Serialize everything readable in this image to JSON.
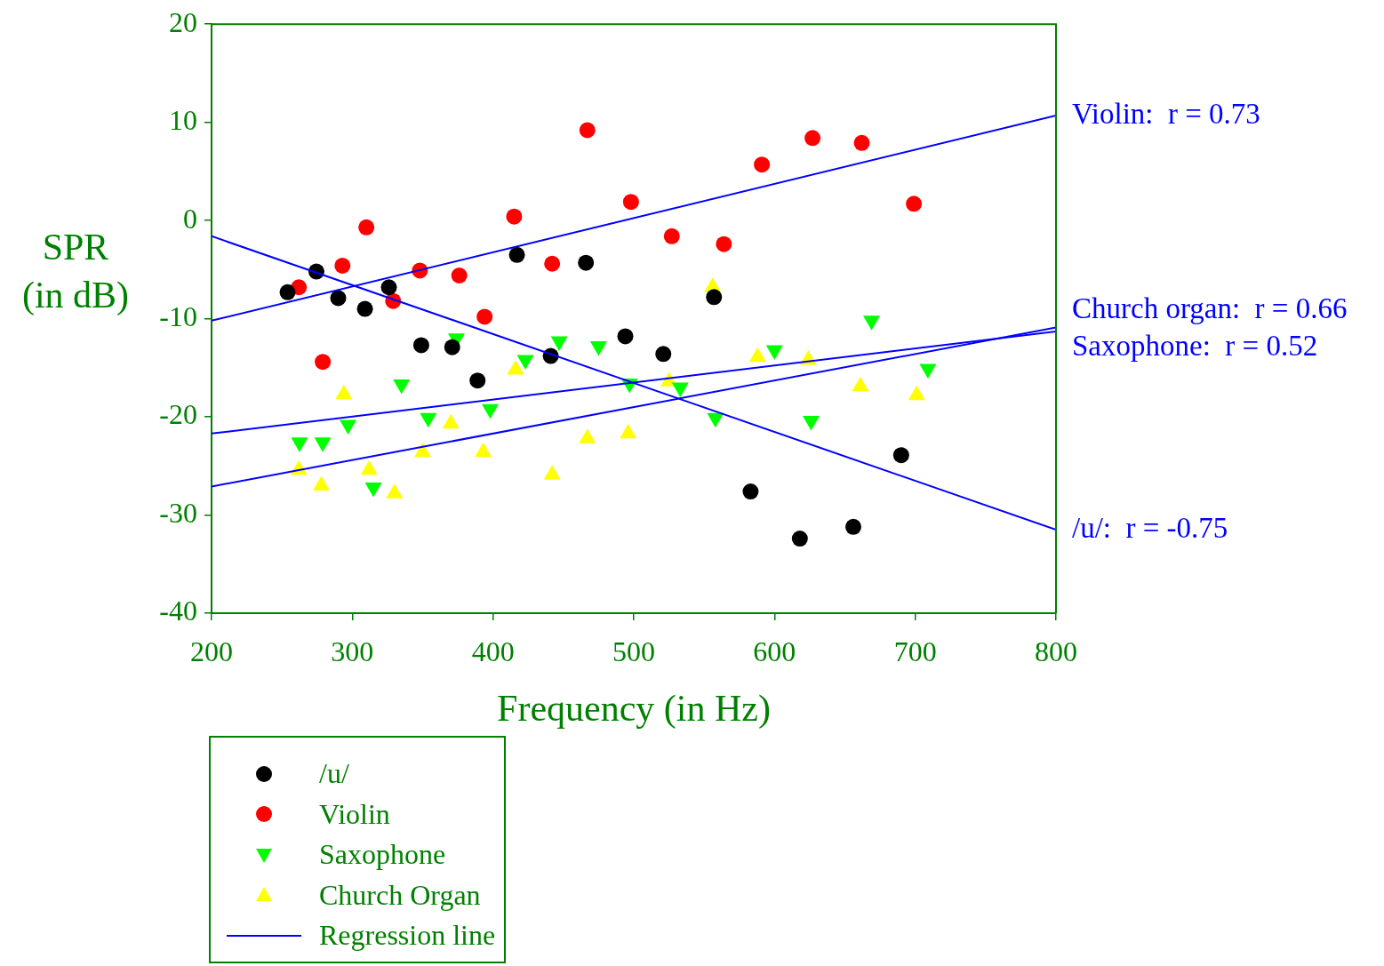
{
  "chart_data": {
    "type": "scatter",
    "xlabel": "Frequency (in Hz)",
    "ylabel": "SPR (in dB)",
    "xlim": [
      200,
      800
    ],
    "ylim": [
      -40,
      20
    ],
    "xticks": [
      200,
      300,
      400,
      500,
      600,
      700,
      800
    ],
    "yticks": [
      -40,
      -30,
      -20,
      -10,
      0,
      10,
      20
    ],
    "grid": false,
    "legend": "bottom left",
    "series": [
      {
        "name": "/u/",
        "color": "#000000",
        "marker": "circle",
        "x": [
          254,
          274.5,
          290,
          309,
          326,
          349,
          371,
          389,
          417,
          441,
          466,
          494,
          521,
          557,
          583,
          618,
          656,
          690
        ],
        "values": [
          -7.3,
          -5.2,
          -7.9,
          -9.0,
          -6.8,
          -12.7,
          -12.9,
          -16.3,
          -3.5,
          -13.8,
          -4.3,
          -11.8,
          -13.6,
          -7.8,
          -27.6,
          -32.4,
          -31.2,
          -23.9
        ]
      },
      {
        "name": "Violin",
        "color": "#ff0000",
        "marker": "circle",
        "x": [
          262,
          279,
          293,
          310,
          329,
          348,
          376,
          394,
          415,
          442,
          467,
          498,
          527,
          564,
          591,
          627,
          662,
          699
        ],
        "values": [
          -6.8,
          -14.4,
          -4.6,
          -0.7,
          -8.2,
          -5.1,
          -5.6,
          -9.8,
          0.4,
          -4.4,
          9.2,
          1.9,
          -1.6,
          -2.4,
          5.7,
          8.4,
          7.9,
          1.7
        ]
      },
      {
        "name": "Saxophone",
        "color": "#00ff00",
        "marker": "triangle-down",
        "x": [
          262.5,
          279,
          297,
          315,
          335,
          354,
          374,
          398,
          423,
          447,
          475,
          497,
          533,
          558,
          600,
          626,
          669,
          709
        ],
        "values": [
          -22.6,
          -22.6,
          -20.8,
          -27.2,
          -16.7,
          -20.1,
          -12.0,
          -19.2,
          -14.2,
          -12.3,
          -12.8,
          -16.6,
          -17.0,
          -20.1,
          -13.2,
          -20.4,
          -10.2,
          -15.1
        ]
      },
      {
        "name": "Church Organ",
        "color": "#ffff00",
        "marker": "triangle",
        "x": [
          262,
          278,
          294,
          312,
          330,
          350,
          370,
          393,
          416,
          442,
          467,
          496,
          525,
          556,
          588,
          624,
          661,
          701
        ],
        "values": [
          -25.4,
          -27.0,
          -17.7,
          -25.4,
          -27.8,
          -23.6,
          -20.7,
          -23.6,
          -15.2,
          -25.9,
          -22.2,
          -21.7,
          -16.4,
          -6.8,
          -13.9,
          -14.2,
          -16.9,
          -17.8
        ]
      },
      {
        "name": "Regression line",
        "type": "line",
        "color": "#0000ff",
        "marker": "none",
        "x": [
          200,
          800
        ],
        "values": [
          -10.2,
          10.7
        ]
      },
      {
        "type": "line",
        "color": "#0000ff",
        "marker": "none",
        "x": [
          200,
          800
        ],
        "values": [
          -27.1,
          -10.9
        ]
      },
      {
        "type": "line",
        "color": "#0000ff",
        "marker": "none",
        "x": [
          200,
          800
        ],
        "values": [
          -21.7,
          -11.3
        ]
      },
      {
        "type": "line",
        "color": "#0000ff",
        "marker": "none",
        "x": [
          200,
          800
        ],
        "values": [
          -1.6,
          -31.5
        ]
      }
    ],
    "annotations": [
      "Violin:  r = 0.73",
      "Church organ:  r = 0.66",
      "Saxophone:  r = 0.52",
      "/u/:  r = -0.75"
    ]
  }
}
